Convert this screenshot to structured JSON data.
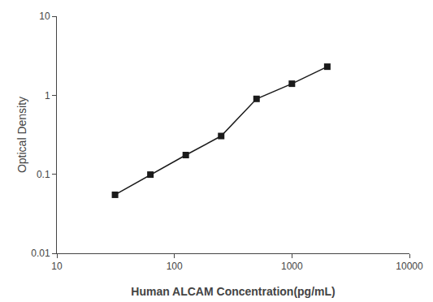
{
  "chart_data": {
    "type": "line",
    "x": [
      31.25,
      62.5,
      125,
      250,
      500,
      1000,
      2000
    ],
    "values": [
      0.055,
      0.099,
      0.175,
      0.305,
      0.9,
      1.4,
      2.3
    ],
    "xlabel": "Human ALCAM Concentration(pg/mL)",
    "ylabel": "Optical Density",
    "xlim": [
      10,
      10000
    ],
    "ylim": [
      0.01,
      10
    ],
    "xticks": [
      10,
      100,
      1000,
      10000
    ],
    "yticks": [
      0.01,
      0.1,
      1,
      10
    ],
    "log": true,
    "grid": false,
    "color": "#1a1a1a",
    "marker": "square",
    "line_style": "solid"
  }
}
